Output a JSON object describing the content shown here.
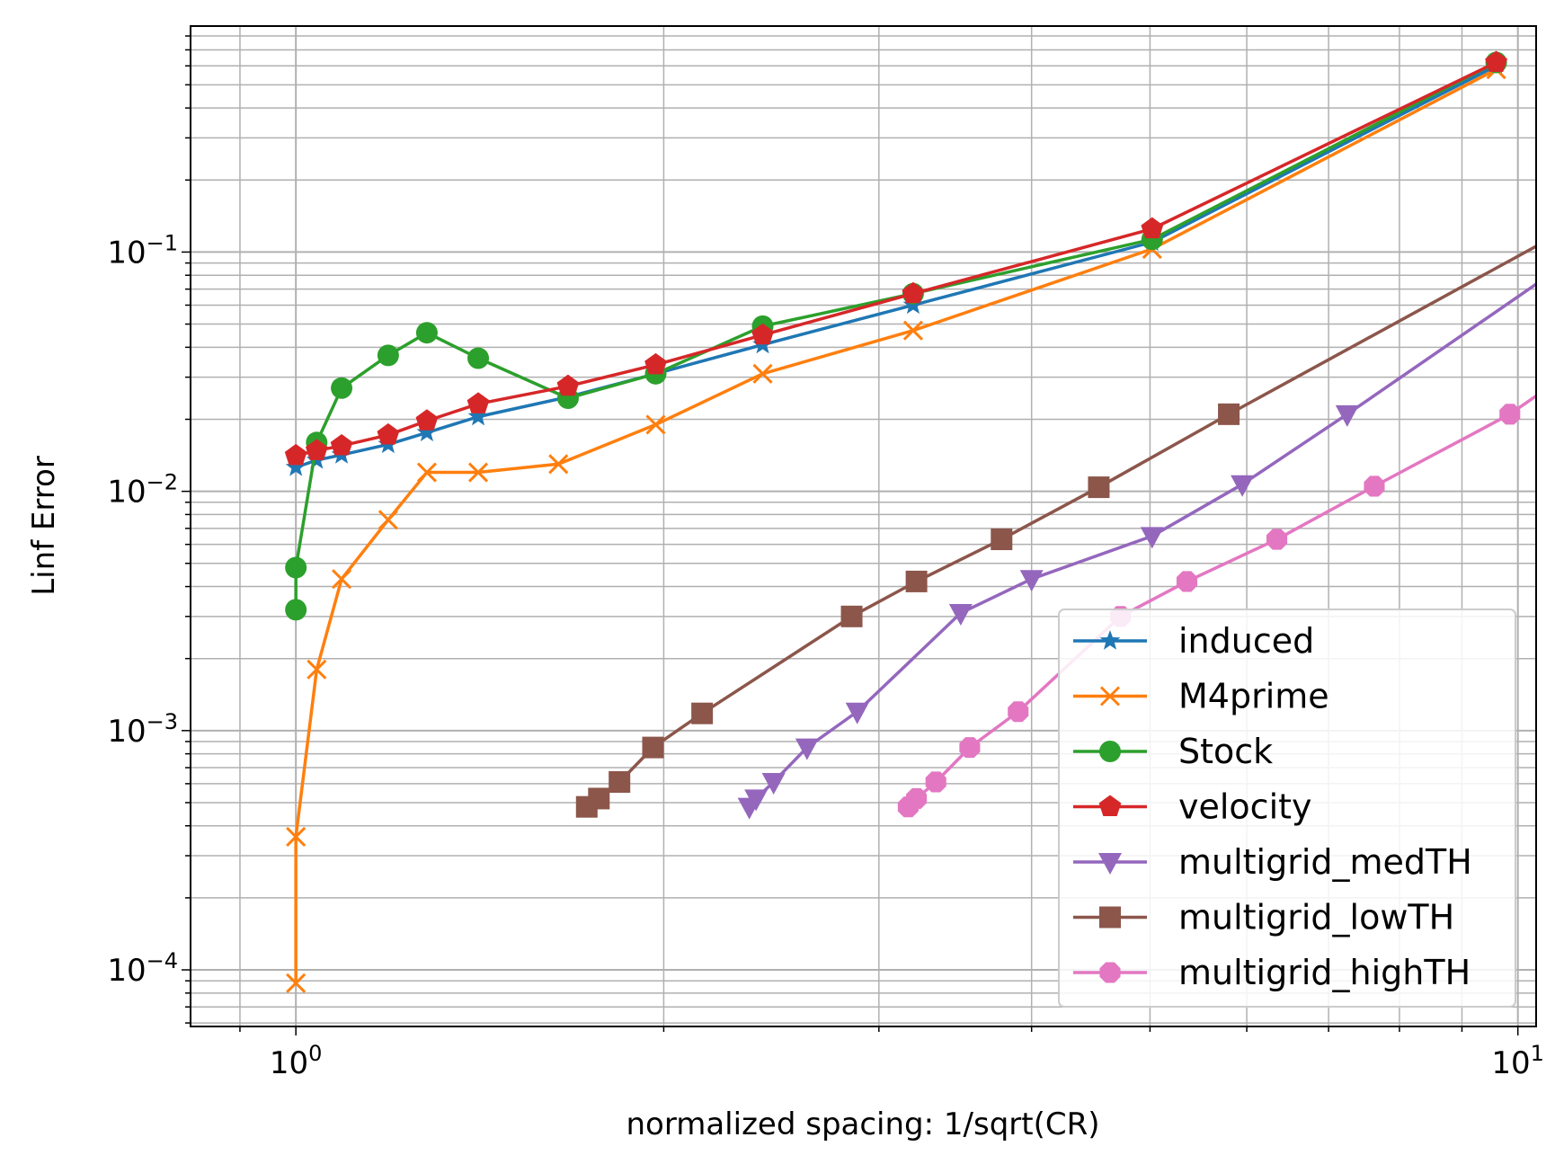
{
  "chart_data": {
    "type": "line",
    "xscale": "log",
    "yscale": "log",
    "xlabel": "normalized spacing: 1/sqrt(CR)",
    "ylabel": "Linf Error",
    "xlim": [
      0.82,
      10.35
    ],
    "ylim": [
      5.8e-05,
      0.88
    ],
    "grid": "both (major and minor)",
    "legend_position": "lower-right",
    "x_ticks": [
      {
        "value": 1,
        "base": "10",
        "exp": "0"
      },
      {
        "value": 10,
        "base": "10",
        "exp": "1"
      }
    ],
    "y_ticks": [
      {
        "value": 0.0001,
        "base": "10",
        "exp": "−4"
      },
      {
        "value": 0.001,
        "base": "10",
        "exp": "−3"
      },
      {
        "value": 0.01,
        "base": "10",
        "exp": "−2"
      },
      {
        "value": 0.1,
        "base": "10",
        "exp": "−1"
      }
    ],
    "series": [
      {
        "name": "induced",
        "color": "#1f77b4",
        "marker": "star",
        "points": [
          [
            1.0,
            0.0126
          ],
          [
            1.04,
            0.0135
          ],
          [
            1.09,
            0.0142
          ],
          [
            1.19,
            0.0157
          ],
          [
            1.28,
            0.0176
          ],
          [
            1.41,
            0.0205
          ],
          [
            1.67,
            0.0248
          ],
          [
            1.97,
            0.031
          ],
          [
            2.41,
            0.041
          ],
          [
            3.2,
            0.06
          ],
          [
            5.02,
            0.11
          ],
          [
            9.6,
            0.6
          ]
        ]
      },
      {
        "name": "M4prime",
        "color": "#ff7f0e",
        "marker": "x",
        "points": [
          [
            1.0,
            8.8e-05
          ],
          [
            1.0,
            0.00036
          ],
          [
            1.04,
            0.0018
          ],
          [
            1.09,
            0.0043
          ],
          [
            1.19,
            0.0076
          ],
          [
            1.28,
            0.012
          ],
          [
            1.41,
            0.012
          ],
          [
            1.64,
            0.013
          ],
          [
            1.97,
            0.019
          ],
          [
            2.41,
            0.031
          ],
          [
            3.2,
            0.047
          ],
          [
            5.02,
            0.103
          ],
          [
            9.6,
            0.58
          ]
        ]
      },
      {
        "name": "Stock",
        "color": "#2ca02c",
        "marker": "circle",
        "points": [
          [
            1.0,
            0.0032
          ],
          [
            1.0,
            0.0048
          ],
          [
            1.04,
            0.016
          ],
          [
            1.09,
            0.027
          ],
          [
            1.19,
            0.037
          ],
          [
            1.28,
            0.046
          ],
          [
            1.41,
            0.036
          ],
          [
            1.67,
            0.0245
          ],
          [
            1.97,
            0.031
          ],
          [
            2.41,
            0.049
          ],
          [
            3.2,
            0.067
          ],
          [
            5.02,
            0.113
          ],
          [
            9.6,
            0.62
          ]
        ]
      },
      {
        "name": "velocity",
        "color": "#d62728",
        "marker": "pentagon",
        "points": [
          [
            1.0,
            0.0141
          ],
          [
            1.04,
            0.0148
          ],
          [
            1.09,
            0.0155
          ],
          [
            1.19,
            0.0172
          ],
          [
            1.28,
            0.0197
          ],
          [
            1.41,
            0.0232
          ],
          [
            1.67,
            0.0275
          ],
          [
            1.97,
            0.0338
          ],
          [
            2.41,
            0.045
          ],
          [
            3.2,
            0.067
          ],
          [
            5.02,
            0.125
          ],
          [
            9.6,
            0.62
          ]
        ]
      },
      {
        "name": "multigrid_medTH",
        "color": "#9467bd",
        "marker": "triangle-down",
        "points": [
          [
            2.35,
            0.00048
          ],
          [
            2.38,
            0.00052
          ],
          [
            2.46,
            0.00061
          ],
          [
            2.62,
            0.00085
          ],
          [
            2.88,
            0.0012
          ],
          [
            3.5,
            0.0031
          ],
          [
            4.0,
            0.0043
          ],
          [
            5.02,
            0.0065
          ],
          [
            5.95,
            0.0107
          ],
          [
            7.25,
            0.021
          ],
          [
            11.7,
            0.113
          ]
        ]
      },
      {
        "name": "multigrid_lowTH",
        "color": "#8c564b",
        "marker": "square",
        "points": [
          [
            1.73,
            0.00048
          ],
          [
            1.77,
            0.00052
          ],
          [
            1.84,
            0.00061
          ],
          [
            1.96,
            0.00085
          ],
          [
            2.15,
            0.00118
          ],
          [
            2.85,
            0.003
          ],
          [
            3.22,
            0.0042
          ],
          [
            3.78,
            0.0063
          ],
          [
            4.54,
            0.0104
          ],
          [
            5.8,
            0.021
          ],
          [
            10.6,
            0.113
          ]
        ]
      },
      {
        "name": "multigrid_highTH",
        "color": "#e377c2",
        "marker": "octagon",
        "points": [
          [
            3.17,
            0.00048
          ],
          [
            3.22,
            0.00052
          ],
          [
            3.34,
            0.00061
          ],
          [
            3.56,
            0.00085
          ],
          [
            3.9,
            0.0012
          ],
          [
            4.73,
            0.003
          ],
          [
            5.36,
            0.0042
          ],
          [
            6.35,
            0.0063
          ],
          [
            7.63,
            0.0105
          ],
          [
            9.85,
            0.021
          ],
          [
            15.8,
            0.113
          ]
        ]
      }
    ]
  }
}
